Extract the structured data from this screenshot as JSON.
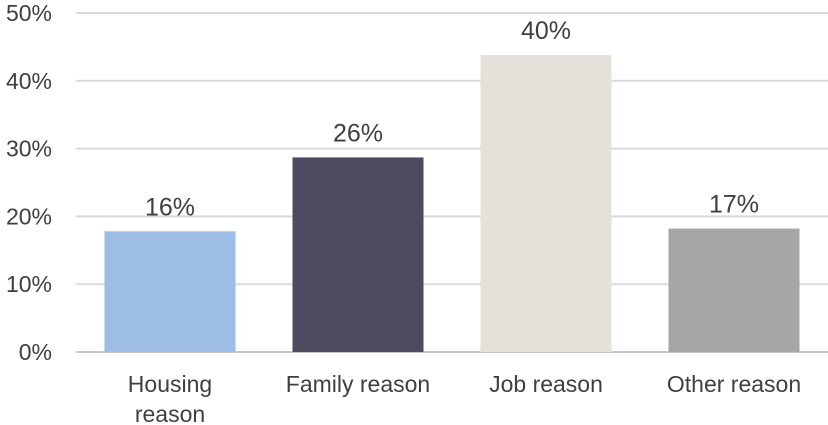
{
  "chart_data": {
    "type": "bar",
    "categories": [
      [
        "Housing",
        "reason"
      ],
      [
        "Family reason"
      ],
      [
        "Job reason"
      ],
      [
        "Other reason"
      ]
    ],
    "values": [
      17.8,
      28.7,
      43.8,
      18.2
    ],
    "data_labels": [
      "16%",
      "26%",
      "40%",
      "17%"
    ],
    "colors": [
      "#9dbde6",
      "#4e4b61",
      "#e4e1da",
      "#a6a6a6"
    ],
    "ylim": [
      0,
      50
    ],
    "yticks": [
      "0%",
      "10%",
      "20%",
      "30%",
      "40%",
      "50%"
    ],
    "grid": true,
    "title": "",
    "xlabel": "",
    "ylabel": ""
  }
}
